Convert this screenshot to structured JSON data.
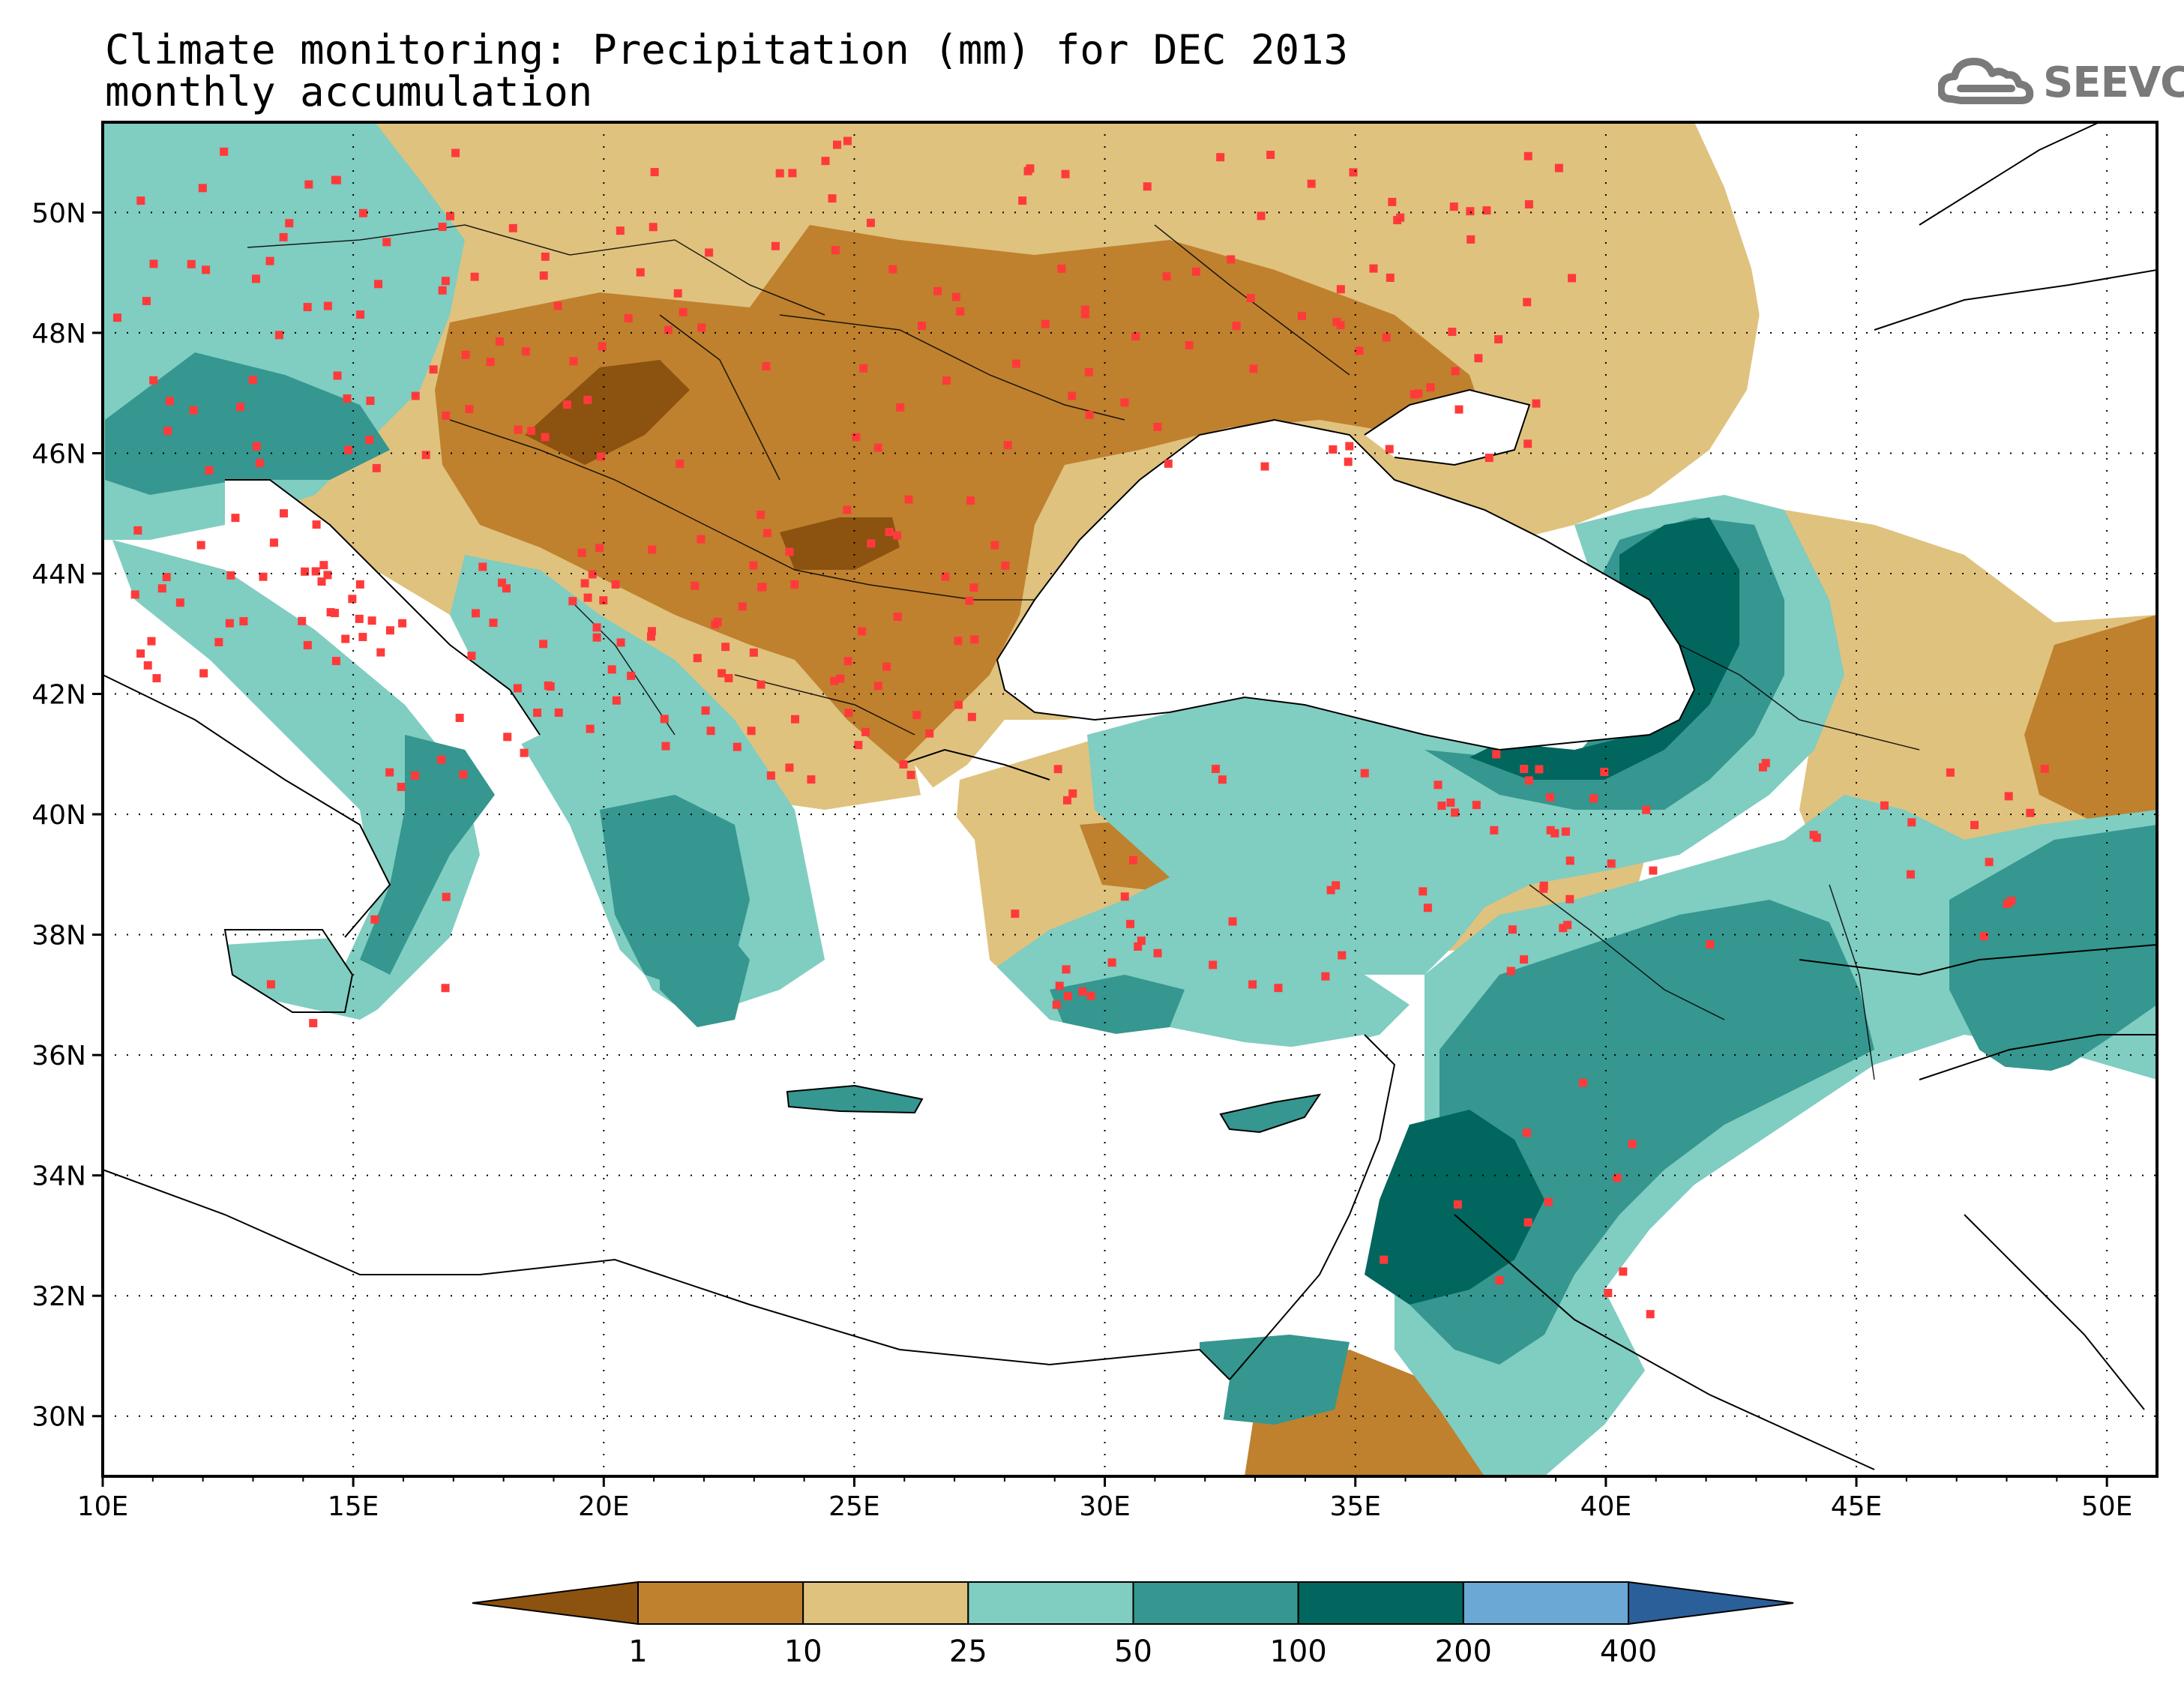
{
  "title": {
    "line1": "Climate monitoring: Precipitation (mm) for DEC 2013",
    "line2": "monthly accumulation"
  },
  "logo": {
    "text": "SEEVCCC",
    "icon": "cloud-icon",
    "color": "#7a7a7a"
  },
  "axes": {
    "lon_labels": [
      "10E",
      "15E",
      "20E",
      "25E",
      "30E",
      "35E",
      "40E",
      "45E",
      "50E"
    ],
    "lat_labels": [
      "50N",
      "48N",
      "46N",
      "44N",
      "42N",
      "40N",
      "38N",
      "36N",
      "34N",
      "32N",
      "30N"
    ],
    "lon_range": [
      10,
      51
    ],
    "lat_range": [
      29,
      51.5
    ],
    "grid": "dotted"
  },
  "colorbar": {
    "labels": [
      "1",
      "10",
      "25",
      "50",
      "100",
      "200",
      "400"
    ],
    "colors": [
      "#8c5210",
      "#bf812e",
      "#dfc27e",
      "#80cdc1",
      "#35978f",
      "#01665e",
      "#6ba8d6",
      "#2a5f9a"
    ],
    "extend": "both"
  },
  "stations_color": "#ff3a3a",
  "ocean_color": "#ffffff"
}
